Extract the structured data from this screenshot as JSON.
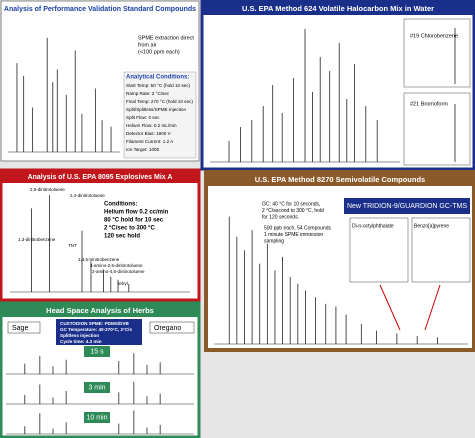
{
  "performance": {
    "title": "Analysis of Performance Validation Standard Compounds",
    "note": [
      "SPME extraction direct",
      "from air",
      "(<100 ppm each)"
    ],
    "conditions_heading": "Analytical Conditions:",
    "conditions": [
      "Start Temp: 50 °C (hold 10 sec)",
      "Ramp Rate: 2 °C/sec",
      "Final Temp: 270 °C (hold 10 sec)",
      "Split/Splitless/SPME Injection",
      "Split Flow: 0 sec",
      "Helium Flow: 0.2 mL/min",
      "Detector Bias: 1800 V",
      "Filament Current: 1.2 A",
      "Ion Target: 1000"
    ],
    "peaks": {
      "x": [
        8,
        14,
        22,
        35,
        40,
        44,
        52,
        60,
        66,
        78,
        84,
        92
      ],
      "heights": [
        70,
        60,
        35,
        90,
        55,
        65,
        45,
        80,
        30,
        50,
        25,
        20
      ]
    }
  },
  "epa624": {
    "title": "U.S. EPA Method 624 Volatile Halocarbon Mix in Water",
    "insets": [
      "#19 Chlorobenzene",
      "#21 Bromoform"
    ],
    "peaks": {
      "x": [
        10,
        16,
        22,
        28,
        33,
        38,
        44,
        50,
        54,
        58,
        63,
        68,
        72,
        76,
        82,
        88
      ],
      "heights": [
        15,
        25,
        30,
        40,
        55,
        35,
        60,
        95,
        50,
        75,
        65,
        85,
        45,
        70,
        40,
        30
      ]
    }
  },
  "epa8095": {
    "title": "Analysis of U.S. EPA 8095 Explosives Mix A",
    "compounds": [
      "2,6-dinitrotoluene",
      "2,4-dinitrotoluene",
      "1,3-dinitrobenzene",
      "TNT",
      "1,3,5-trinitrobenzene",
      "4-amino-2,6-dinitrotoluene",
      "2-amino-4,6-dinitrotoluene",
      "tetryl"
    ],
    "conditions": [
      "Conditions:",
      "Helium flow 0.2 cc/min",
      "80 °C hold for 10 sec",
      "2 °C/sec to 300 °C",
      "120 sec hold"
    ],
    "peaks": {
      "x": [
        12,
        22,
        40,
        45,
        52,
        56,
        60,
        66
      ],
      "heights": [
        82,
        95,
        60,
        30,
        22,
        15,
        12,
        8
      ]
    }
  },
  "epa8270": {
    "title": "U.S. EPA Method 8270 Semivolatile Compounds",
    "note": [
      "GC: 40 °C for 10 seconds,",
      "2 °C/second to 300 °C, hold",
      "for 120 seconds."
    ],
    "sample": [
      "500 ppb each, 54 Compounds",
      "1 minute SPME immersion",
      "sampling"
    ],
    "banner": "New TRIDION-9/GUARDION GC-TMS",
    "insets": [
      "Di-n-octylphthalate",
      "Benzo[a]pyrene"
    ],
    "peaks": {
      "x": [
        6,
        9,
        12,
        15,
        18,
        21,
        24,
        27,
        30,
        33,
        36,
        40,
        44,
        48,
        52,
        58,
        64,
        72,
        80,
        88
      ],
      "heights": [
        95,
        80,
        70,
        85,
        60,
        75,
        55,
        65,
        50,
        45,
        40,
        35,
        30,
        28,
        22,
        15,
        10,
        8,
        6,
        5
      ]
    }
  },
  "herbs": {
    "title": "Head Space Analysis of Herbs",
    "left": "Sage",
    "right": "Oregano",
    "box": [
      "CUSTODION SPME: PDMS/DVB",
      "GC Temperature: 40-270°C, 2°C/s",
      "Splitless injection",
      "Cycle time: 4.3 min"
    ],
    "traces": [
      {
        "time": "15 s",
        "peaks": {
          "x": [
            10,
            18,
            25,
            32,
            60,
            68,
            75,
            82
          ],
          "heights": [
            40,
            70,
            30,
            55,
            50,
            80,
            35,
            45
          ]
        }
      },
      {
        "time": "3 min",
        "peaks": {
          "x": [
            10,
            18,
            25,
            32,
            60,
            68,
            75,
            82
          ],
          "heights": [
            35,
            75,
            25,
            50,
            45,
            85,
            30,
            40
          ]
        }
      },
      {
        "time": "10 min",
        "peaks": {
          "x": [
            10,
            18,
            25,
            32,
            60,
            68,
            75,
            82
          ],
          "heights": [
            30,
            80,
            20,
            45,
            40,
            90,
            25,
            35
          ]
        }
      }
    ]
  }
}
